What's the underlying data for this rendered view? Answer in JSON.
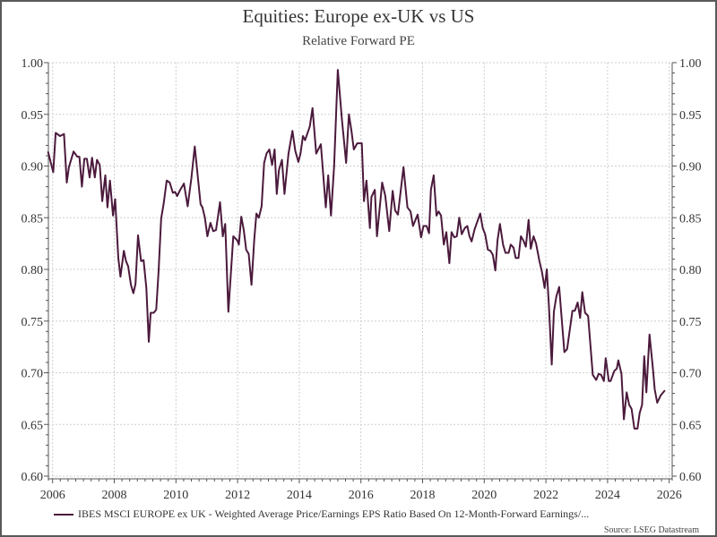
{
  "chart_data": {
    "type": "line",
    "title": "Equities: Europe ex-UK vs US",
    "subtitle": "Relative Forward PE",
    "xlabel": "",
    "ylabel": "",
    "xlim": [
      2006,
      2026
    ],
    "ylim": [
      0.6,
      1.0
    ],
    "x_ticks": [
      "2006",
      "2008",
      "2010",
      "2012",
      "2014",
      "2016",
      "2018",
      "2020",
      "2022",
      "2024",
      "2026"
    ],
    "y_ticks": [
      "0.60",
      "0.65",
      "0.70",
      "0.75",
      "0.80",
      "0.85",
      "0.90",
      "0.95",
      "1.00"
    ],
    "grid": true,
    "legend_position": "bottom",
    "source": "Source: LSEG Datastream",
    "line_color": "#4b1a3c",
    "series": [
      {
        "name": "IBES MSCI EUROPE ex UK - Weighted Average Price/Earnings EPS Ratio Based On 12-Month-Forward Earnings/...",
        "points": [
          [
            2005.85,
            0.914
          ],
          [
            2006.02,
            0.894
          ],
          [
            2006.1,
            0.932
          ],
          [
            2006.24,
            0.929
          ],
          [
            2006.37,
            0.931
          ],
          [
            2006.46,
            0.884
          ],
          [
            2006.53,
            0.899
          ],
          [
            2006.68,
            0.914
          ],
          [
            2006.8,
            0.909
          ],
          [
            2006.87,
            0.909
          ],
          [
            2006.95,
            0.88
          ],
          [
            2007.03,
            0.907
          ],
          [
            2007.11,
            0.907
          ],
          [
            2007.2,
            0.889
          ],
          [
            2007.28,
            0.908
          ],
          [
            2007.37,
            0.889
          ],
          [
            2007.44,
            0.906
          ],
          [
            2007.53,
            0.901
          ],
          [
            2007.61,
            0.866
          ],
          [
            2007.71,
            0.891
          ],
          [
            2007.78,
            0.86
          ],
          [
            2007.86,
            0.886
          ],
          [
            2007.96,
            0.852
          ],
          [
            2008.03,
            0.868
          ],
          [
            2008.13,
            0.811
          ],
          [
            2008.2,
            0.793
          ],
          [
            2008.31,
            0.818
          ],
          [
            2008.38,
            0.808
          ],
          [
            2008.45,
            0.803
          ],
          [
            2008.54,
            0.785
          ],
          [
            2008.62,
            0.777
          ],
          [
            2008.69,
            0.786
          ],
          [
            2008.77,
            0.833
          ],
          [
            2008.87,
            0.808
          ],
          [
            2008.95,
            0.809
          ],
          [
            2009.04,
            0.782
          ],
          [
            2009.12,
            0.73
          ],
          [
            2009.18,
            0.758
          ],
          [
            2009.28,
            0.758
          ],
          [
            2009.36,
            0.761
          ],
          [
            2009.44,
            0.799
          ],
          [
            2009.52,
            0.849
          ],
          [
            2009.6,
            0.863
          ],
          [
            2009.7,
            0.886
          ],
          [
            2009.8,
            0.884
          ],
          [
            2009.9,
            0.874
          ],
          [
            2009.97,
            0.875
          ],
          [
            2010.04,
            0.871
          ],
          [
            2010.14,
            0.877
          ],
          [
            2010.26,
            0.883
          ],
          [
            2010.38,
            0.861
          ],
          [
            2010.5,
            0.888
          ],
          [
            2010.61,
            0.919
          ],
          [
            2010.8,
            0.863
          ],
          [
            2010.86,
            0.86
          ],
          [
            2010.94,
            0.85
          ],
          [
            2011.02,
            0.832
          ],
          [
            2011.12,
            0.845
          ],
          [
            2011.21,
            0.837
          ],
          [
            2011.3,
            0.838
          ],
          [
            2011.43,
            0.865
          ],
          [
            2011.52,
            0.832
          ],
          [
            2011.6,
            0.844
          ],
          [
            2011.7,
            0.759
          ],
          [
            2011.86,
            0.832
          ],
          [
            2011.99,
            0.828
          ],
          [
            2012.04,
            0.824
          ],
          [
            2012.12,
            0.851
          ],
          [
            2012.2,
            0.838
          ],
          [
            2012.28,
            0.819
          ],
          [
            2012.36,
            0.815
          ],
          [
            2012.45,
            0.785
          ],
          [
            2012.54,
            0.829
          ],
          [
            2012.61,
            0.854
          ],
          [
            2012.69,
            0.85
          ],
          [
            2012.78,
            0.861
          ],
          [
            2012.86,
            0.903
          ],
          [
            2012.94,
            0.912
          ],
          [
            2013.03,
            0.916
          ],
          [
            2013.12,
            0.901
          ],
          [
            2013.2,
            0.916
          ],
          [
            2013.27,
            0.873
          ],
          [
            2013.34,
            0.896
          ],
          [
            2013.44,
            0.906
          ],
          [
            2013.52,
            0.873
          ],
          [
            2013.65,
            0.912
          ],
          [
            2013.78,
            0.934
          ],
          [
            2013.87,
            0.915
          ],
          [
            2013.97,
            0.904
          ],
          [
            2014.04,
            0.912
          ],
          [
            2014.12,
            0.929
          ],
          [
            2014.19,
            0.925
          ],
          [
            2014.34,
            0.938
          ],
          [
            2014.43,
            0.956
          ],
          [
            2014.55,
            0.912
          ],
          [
            2014.7,
            0.921
          ],
          [
            2014.86,
            0.86
          ],
          [
            2014.94,
            0.891
          ],
          [
            2015.03,
            0.852
          ],
          [
            2015.13,
            0.9
          ],
          [
            2015.25,
            0.993
          ],
          [
            2015.38,
            0.946
          ],
          [
            2015.52,
            0.903
          ],
          [
            2015.61,
            0.95
          ],
          [
            2015.69,
            0.935
          ],
          [
            2015.77,
            0.916
          ],
          [
            2015.88,
            0.922
          ],
          [
            2016.03,
            0.922
          ],
          [
            2016.1,
            0.866
          ],
          [
            2016.18,
            0.886
          ],
          [
            2016.29,
            0.84
          ],
          [
            2016.34,
            0.87
          ],
          [
            2016.45,
            0.877
          ],
          [
            2016.52,
            0.832
          ],
          [
            2016.69,
            0.884
          ],
          [
            2016.79,
            0.871
          ],
          [
            2016.92,
            0.837
          ],
          [
            2017.03,
            0.876
          ],
          [
            2017.11,
            0.857
          ],
          [
            2017.2,
            0.853
          ],
          [
            2017.38,
            0.899
          ],
          [
            2017.51,
            0.86
          ],
          [
            2017.61,
            0.856
          ],
          [
            2017.69,
            0.842
          ],
          [
            2017.84,
            0.853
          ],
          [
            2017.95,
            0.831
          ],
          [
            2018.03,
            0.842
          ],
          [
            2018.13,
            0.842
          ],
          [
            2018.21,
            0.835
          ],
          [
            2018.27,
            0.877
          ],
          [
            2018.36,
            0.891
          ],
          [
            2018.45,
            0.852
          ],
          [
            2018.52,
            0.856
          ],
          [
            2018.6,
            0.852
          ],
          [
            2018.69,
            0.824
          ],
          [
            2018.77,
            0.836
          ],
          [
            2018.87,
            0.806
          ],
          [
            2018.94,
            0.836
          ],
          [
            2019.03,
            0.831
          ],
          [
            2019.11,
            0.832
          ],
          [
            2019.19,
            0.85
          ],
          [
            2019.27,
            0.834
          ],
          [
            2019.37,
            0.84
          ],
          [
            2019.45,
            0.842
          ],
          [
            2019.52,
            0.832
          ],
          [
            2019.59,
            0.827
          ],
          [
            2019.69,
            0.839
          ],
          [
            2019.87,
            0.854
          ],
          [
            2019.95,
            0.84
          ],
          [
            2020.03,
            0.834
          ],
          [
            2020.12,
            0.819
          ],
          [
            2020.2,
            0.818
          ],
          [
            2020.28,
            0.814
          ],
          [
            2020.36,
            0.799
          ],
          [
            2020.43,
            0.828
          ],
          [
            2020.51,
            0.844
          ],
          [
            2020.61,
            0.824
          ],
          [
            2020.69,
            0.816
          ],
          [
            2020.79,
            0.816
          ],
          [
            2020.86,
            0.824
          ],
          [
            2020.95,
            0.821
          ],
          [
            2021.02,
            0.811
          ],
          [
            2021.11,
            0.811
          ],
          [
            2021.19,
            0.832
          ],
          [
            2021.27,
            0.828
          ],
          [
            2021.35,
            0.822
          ],
          [
            2021.44,
            0.848
          ],
          [
            2021.51,
            0.82
          ],
          [
            2021.6,
            0.832
          ],
          [
            2021.68,
            0.825
          ],
          [
            2021.79,
            0.808
          ],
          [
            2021.87,
            0.798
          ],
          [
            2021.96,
            0.782
          ],
          [
            2022.03,
            0.8
          ],
          [
            2022.1,
            0.764
          ],
          [
            2022.19,
            0.708
          ],
          [
            2022.26,
            0.759
          ],
          [
            2022.34,
            0.774
          ],
          [
            2022.43,
            0.783
          ],
          [
            2022.6,
            0.72
          ],
          [
            2022.69,
            0.723
          ],
          [
            2022.86,
            0.76
          ],
          [
            2022.94,
            0.76
          ],
          [
            2023.03,
            0.768
          ],
          [
            2023.11,
            0.753
          ],
          [
            2023.18,
            0.778
          ],
          [
            2023.27,
            0.758
          ],
          [
            2023.37,
            0.755
          ],
          [
            2023.52,
            0.698
          ],
          [
            2023.63,
            0.693
          ],
          [
            2023.71,
            0.699
          ],
          [
            2023.79,
            0.698
          ],
          [
            2023.88,
            0.692
          ],
          [
            2023.94,
            0.714
          ],
          [
            2024.04,
            0.692
          ],
          [
            2024.1,
            0.692
          ],
          [
            2024.22,
            0.702
          ],
          [
            2024.3,
            0.704
          ],
          [
            2024.35,
            0.712
          ],
          [
            2024.45,
            0.699
          ],
          [
            2024.53,
            0.655
          ],
          [
            2024.62,
            0.681
          ],
          [
            2024.7,
            0.669
          ],
          [
            2024.78,
            0.665
          ],
          [
            2024.87,
            0.646
          ],
          [
            2024.97,
            0.646
          ],
          [
            2025.04,
            0.661
          ],
          [
            2025.12,
            0.669
          ],
          [
            2025.19,
            0.716
          ],
          [
            2025.26,
            0.681
          ],
          [
            2025.36,
            0.737
          ],
          [
            2025.47,
            0.704
          ],
          [
            2025.53,
            0.684
          ],
          [
            2025.61,
            0.671
          ],
          [
            2025.72,
            0.678
          ],
          [
            2025.86,
            0.683
          ]
        ]
      }
    ]
  }
}
